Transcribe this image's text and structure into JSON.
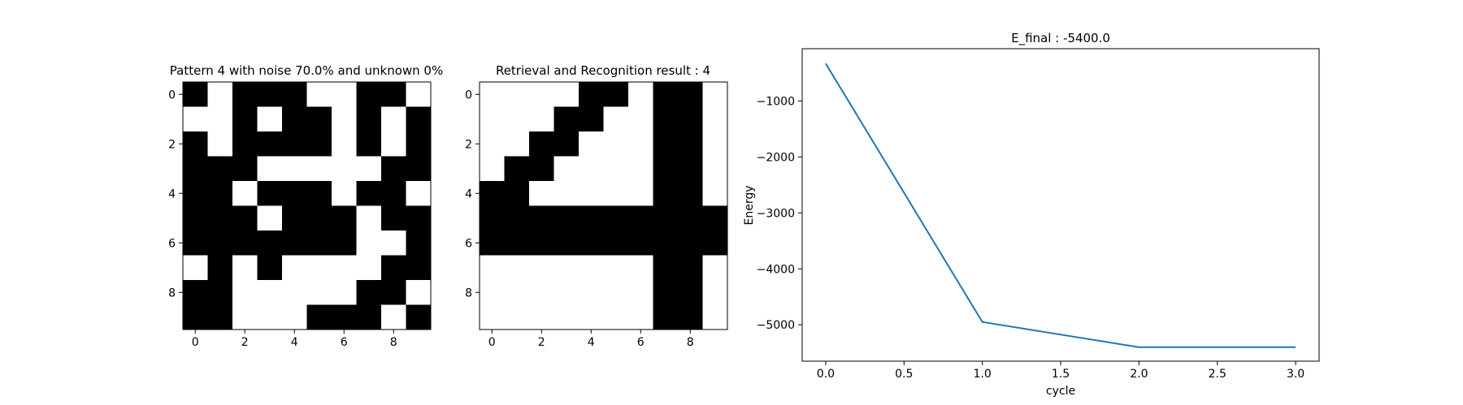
{
  "chart_data": [
    {
      "type": "heatmap",
      "title": "Pattern 4 with noise 70.0% and unknown 0%",
      "colormap": "gray (black = 1, white = 0)",
      "xticks": [
        "0",
        "2",
        "4",
        "6",
        "8"
      ],
      "yticks": [
        "0",
        "2",
        "4",
        "6",
        "8"
      ],
      "grid": [
        [
          1,
          0,
          1,
          1,
          1,
          0,
          0,
          1,
          1,
          0
        ],
        [
          0,
          0,
          1,
          0,
          1,
          1,
          0,
          1,
          0,
          1
        ],
        [
          1,
          0,
          1,
          1,
          1,
          1,
          0,
          1,
          0,
          1
        ],
        [
          1,
          1,
          1,
          0,
          0,
          0,
          0,
          0,
          1,
          1
        ],
        [
          1,
          1,
          0,
          1,
          1,
          1,
          0,
          1,
          1,
          0
        ],
        [
          1,
          1,
          1,
          0,
          1,
          1,
          1,
          0,
          1,
          1
        ],
        [
          1,
          1,
          1,
          1,
          1,
          1,
          1,
          0,
          0,
          1
        ],
        [
          0,
          1,
          0,
          1,
          0,
          0,
          0,
          0,
          1,
          1
        ],
        [
          1,
          1,
          0,
          0,
          0,
          0,
          0,
          1,
          1,
          0
        ],
        [
          1,
          1,
          0,
          0,
          0,
          1,
          1,
          1,
          0,
          1
        ]
      ]
    },
    {
      "type": "heatmap",
      "title": "Retrieval and Recognition result : 4",
      "colormap": "gray (black = 1, white = 0)",
      "xticks": [
        "0",
        "2",
        "4",
        "6",
        "8"
      ],
      "yticks": [
        "0",
        "2",
        "4",
        "6",
        "8"
      ],
      "grid": [
        [
          0,
          0,
          0,
          0,
          1,
          1,
          0,
          1,
          1,
          0
        ],
        [
          0,
          0,
          0,
          1,
          1,
          0,
          0,
          1,
          1,
          0
        ],
        [
          0,
          0,
          1,
          1,
          0,
          0,
          0,
          1,
          1,
          0
        ],
        [
          0,
          1,
          1,
          0,
          0,
          0,
          0,
          1,
          1,
          0
        ],
        [
          1,
          1,
          0,
          0,
          0,
          0,
          0,
          1,
          1,
          0
        ],
        [
          1,
          1,
          1,
          1,
          1,
          1,
          1,
          1,
          1,
          1
        ],
        [
          1,
          1,
          1,
          1,
          1,
          1,
          1,
          1,
          1,
          1
        ],
        [
          0,
          0,
          0,
          0,
          0,
          0,
          0,
          1,
          1,
          0
        ],
        [
          0,
          0,
          0,
          0,
          0,
          0,
          0,
          1,
          1,
          0
        ],
        [
          0,
          0,
          0,
          0,
          0,
          0,
          0,
          1,
          1,
          0
        ]
      ]
    },
    {
      "type": "line",
      "title": "E_final : -5400.0",
      "xlabel": "cycle",
      "ylabel": "Energy",
      "x": [
        0,
        1,
        2,
        3
      ],
      "series": [
        {
          "values": [
            -330,
            -4950,
            -5400,
            -5400
          ],
          "color": "#1f77b4"
        }
      ],
      "xlim": [
        -0.15,
        3.15
      ],
      "ylim": [
        -5650,
        -65
      ],
      "xticks": [
        0.0,
        0.5,
        1.0,
        1.5,
        2.0,
        2.5,
        3.0
      ],
      "xtick_labels": [
        "0.0",
        "0.5",
        "1.0",
        "1.5",
        "2.0",
        "2.5",
        "3.0"
      ],
      "yticks": [
        -1000,
        -2000,
        -3000,
        -4000,
        -5000
      ],
      "ytick_labels": [
        "−1000",
        "−2000",
        "−3000",
        "−4000",
        "−5000"
      ],
      "grid": false
    }
  ]
}
